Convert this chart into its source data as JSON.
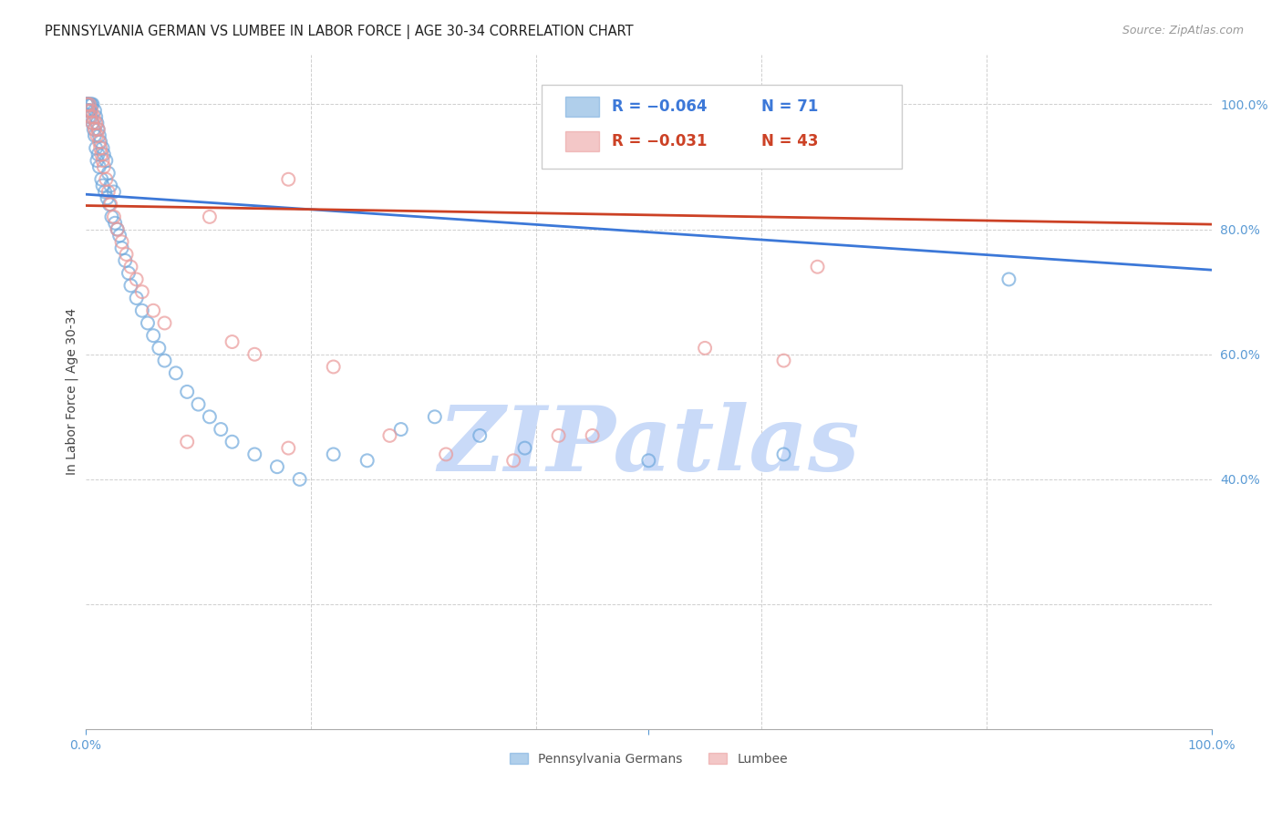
{
  "title": "PENNSYLVANIA GERMAN VS LUMBEE IN LABOR FORCE | AGE 30-34 CORRELATION CHART",
  "source": "Source: ZipAtlas.com",
  "ylabel": "In Labor Force | Age 30-34",
  "xlim": [
    0.0,
    1.0
  ],
  "ylim": [
    0.0,
    1.08
  ],
  "legend_R_N": [
    [
      "R = −0.064",
      "N = 71"
    ],
    [
      "R = −0.031",
      "N = 43"
    ]
  ],
  "blue_color": "#6fa8dc",
  "pink_color": "#ea9999",
  "blue_line_color": "#3c78d8",
  "pink_line_color": "#cc4125",
  "watermark": "ZIPatlas",
  "watermark_color": "#c9daf8",
  "background_color": "#ffffff",
  "grid_color": "#b0b0b0",
  "right_tick_color": "#5b9bd5",
  "blue_scatter_x": [
    0.001,
    0.001,
    0.001,
    0.001,
    0.002,
    0.002,
    0.002,
    0.003,
    0.003,
    0.003,
    0.004,
    0.004,
    0.005,
    0.005,
    0.006,
    0.006,
    0.007,
    0.008,
    0.008,
    0.009,
    0.009,
    0.01,
    0.01,
    0.011,
    0.011,
    0.012,
    0.012,
    0.013,
    0.014,
    0.015,
    0.015,
    0.016,
    0.017,
    0.018,
    0.019,
    0.02,
    0.021,
    0.022,
    0.023,
    0.025,
    0.026,
    0.028,
    0.03,
    0.032,
    0.035,
    0.038,
    0.04,
    0.045,
    0.05,
    0.055,
    0.06,
    0.065,
    0.07,
    0.08,
    0.09,
    0.1,
    0.11,
    0.12,
    0.13,
    0.15,
    0.17,
    0.19,
    0.22,
    0.25,
    0.28,
    0.31,
    0.35,
    0.39,
    0.5,
    0.62,
    0.82
  ],
  "blue_scatter_y": [
    1.0,
    1.0,
    1.0,
    0.99,
    1.0,
    1.0,
    0.99,
    1.0,
    0.99,
    0.98,
    1.0,
    0.99,
    1.0,
    0.98,
    1.0,
    0.97,
    0.96,
    0.99,
    0.95,
    0.98,
    0.93,
    0.97,
    0.91,
    0.96,
    0.92,
    0.95,
    0.9,
    0.94,
    0.88,
    0.93,
    0.87,
    0.92,
    0.86,
    0.91,
    0.85,
    0.89,
    0.84,
    0.87,
    0.82,
    0.86,
    0.81,
    0.8,
    0.79,
    0.77,
    0.75,
    0.73,
    0.71,
    0.69,
    0.67,
    0.65,
    0.63,
    0.61,
    0.59,
    0.57,
    0.54,
    0.52,
    0.5,
    0.48,
    0.46,
    0.44,
    0.42,
    0.4,
    0.44,
    0.43,
    0.48,
    0.5,
    0.47,
    0.45,
    0.43,
    0.44,
    0.72
  ],
  "pink_scatter_x": [
    0.001,
    0.002,
    0.003,
    0.004,
    0.005,
    0.006,
    0.007,
    0.008,
    0.009,
    0.01,
    0.011,
    0.012,
    0.013,
    0.014,
    0.015,
    0.016,
    0.018,
    0.02,
    0.022,
    0.025,
    0.028,
    0.032,
    0.036,
    0.04,
    0.045,
    0.05,
    0.06,
    0.07,
    0.09,
    0.11,
    0.13,
    0.15,
    0.18,
    0.22,
    0.27,
    0.32,
    0.38,
    0.45,
    0.55,
    0.65,
    0.18,
    0.42,
    0.62
  ],
  "pink_scatter_y": [
    1.0,
    0.99,
    1.0,
    0.98,
    0.99,
    0.97,
    0.98,
    0.96,
    0.97,
    0.95,
    0.96,
    0.94,
    0.93,
    0.92,
    0.91,
    0.9,
    0.88,
    0.86,
    0.84,
    0.82,
    0.8,
    0.78,
    0.76,
    0.74,
    0.72,
    0.7,
    0.67,
    0.65,
    0.46,
    0.82,
    0.62,
    0.6,
    0.45,
    0.58,
    0.47,
    0.44,
    0.43,
    0.47,
    0.61,
    0.74,
    0.88,
    0.47,
    0.59
  ],
  "blue_trend_y_start": 0.856,
  "blue_trend_y_end": 0.735,
  "pink_trend_y_start": 0.838,
  "pink_trend_y_end": 0.808
}
